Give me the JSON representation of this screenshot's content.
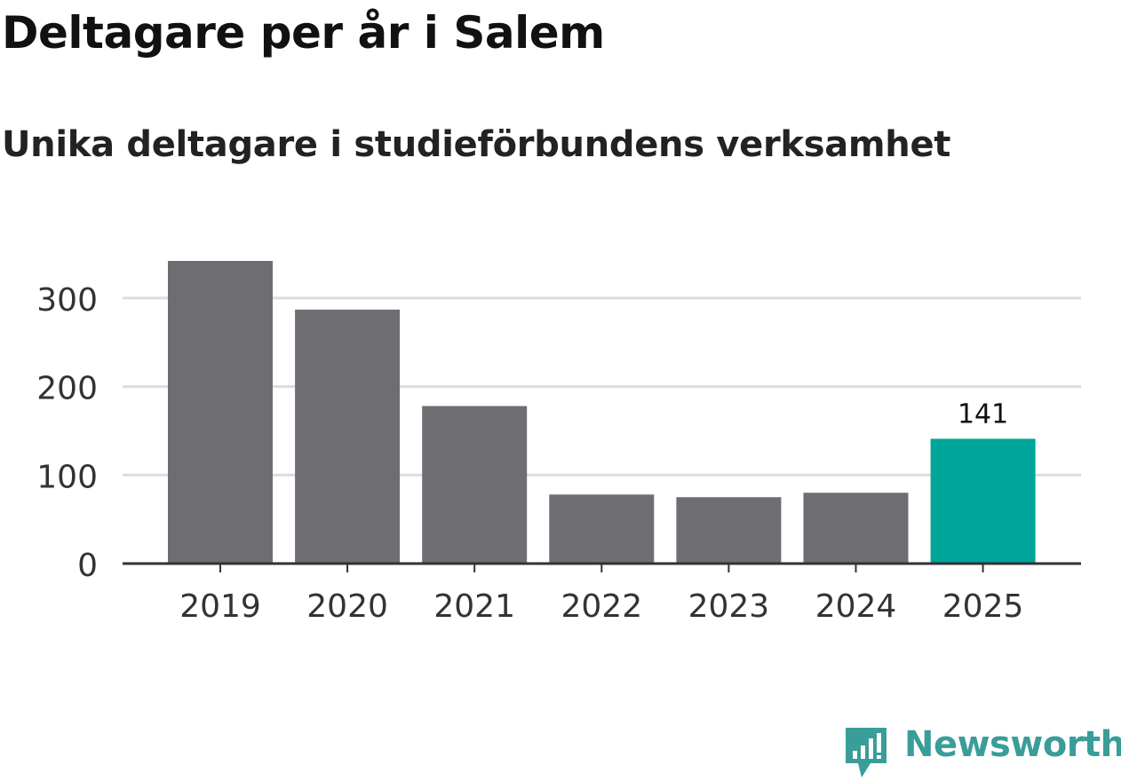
{
  "chart_data": {
    "type": "bar",
    "title": "Deltagare per år i Salem",
    "subtitle": "Unika deltagare i studieförbundens verksamhet",
    "categories": [
      "2019",
      "2020",
      "2021",
      "2022",
      "2023",
      "2024",
      "2025"
    ],
    "values": [
      342,
      287,
      178,
      78,
      75,
      80,
      141
    ],
    "highlight_index": 6,
    "highlight_label": "141",
    "ylim": [
      0,
      342
    ],
    "yticks": [
      "0",
      "100",
      "200",
      "300"
    ],
    "ytick_values": [
      0,
      100,
      200,
      300
    ],
    "xlabel": "",
    "ylabel": "",
    "grid": true,
    "colors": {
      "bar": "#6e6d72",
      "highlight": "#00a59a",
      "grid": "#dddddd",
      "axis": "#333333",
      "tick_text": "#333333"
    }
  },
  "brand": {
    "name": "Newsworthy",
    "icon": "newsworthy-logo-icon",
    "color": "#3a9d99"
  }
}
